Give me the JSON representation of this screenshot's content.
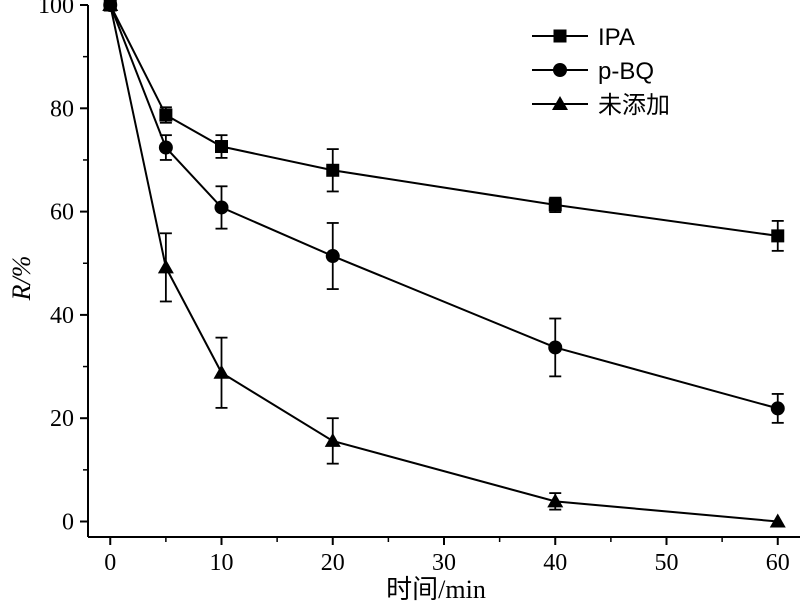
{
  "chart_data": {
    "type": "line",
    "xlabel": "时间/min",
    "ylabel": "R/%",
    "xlim": [
      -2,
      62
    ],
    "ylim": [
      -3,
      100
    ],
    "xticks": [
      0,
      10,
      20,
      30,
      40,
      50,
      60
    ],
    "yticks": [
      0,
      20,
      40,
      60,
      80,
      100
    ],
    "grid": false,
    "legend_position": "top-right",
    "series": [
      {
        "name": "IPA",
        "marker": "square",
        "x": [
          0,
          5,
          10,
          20,
          40,
          60
        ],
        "values": [
          100,
          78.7,
          72.6,
          68.0,
          61.3,
          55.3
        ],
        "errors": [
          0,
          1.5,
          2.2,
          4.1,
          1.4,
          2.9
        ]
      },
      {
        "name": "p-BQ",
        "marker": "circle",
        "x": [
          0,
          5,
          10,
          20,
          40,
          60
        ],
        "values": [
          100,
          72.4,
          60.8,
          51.4,
          33.7,
          21.9
        ],
        "errors": [
          0,
          2.4,
          4.1,
          6.4,
          5.6,
          2.8
        ]
      },
      {
        "name": "未添加",
        "marker": "triangle",
        "x": [
          0,
          5,
          10,
          20,
          40,
          60
        ],
        "values": [
          100,
          49.2,
          28.8,
          15.6,
          3.9,
          0
        ],
        "errors": [
          0,
          6.6,
          6.8,
          4.4,
          1.6,
          0
        ]
      }
    ],
    "x_tick_labels": [
      "0",
      "10",
      "20",
      "30",
      "40",
      "50",
      "60"
    ],
    "y_tick_labels": [
      "0",
      "20",
      "40",
      "60",
      "80",
      "100"
    ]
  }
}
